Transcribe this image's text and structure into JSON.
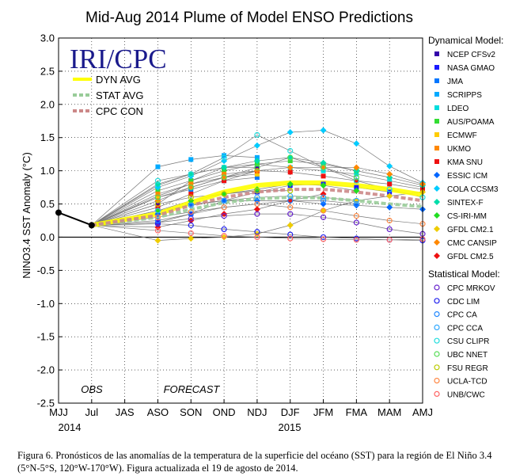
{
  "chart_data": {
    "type": "line",
    "title": "Mid-Aug 2014 Plume of Model ENSO Predictions",
    "logo_text": "IRI/CPC",
    "ylabel": "NINO3.4 SST Anomaly (°C)",
    "ylim": [
      -2.5,
      3.0
    ],
    "yticks": [
      "3.0",
      "2.5",
      "2.0",
      "1.5",
      "1.0",
      "0.5",
      "0.0",
      "-0.5",
      "-1.0",
      "-1.5",
      "-2.0",
      "-2.5"
    ],
    "categories": [
      "MJJ",
      "Jul",
      "JAS",
      "ASO",
      "SON",
      "OND",
      "NDJ",
      "DJF",
      "JFM",
      "FMA",
      "MAM",
      "AMJ"
    ],
    "year_labels": [
      {
        "text": "2014",
        "at": "MJJ"
      },
      {
        "text": "2015",
        "at": "DJF"
      }
    ],
    "region_labels": {
      "obs": "OBS",
      "forecast": "FORECAST"
    },
    "grid": true,
    "observed": {
      "x": [
        "MJJ",
        "Jul"
      ],
      "values": [
        0.37,
        0.18
      ]
    },
    "averages": [
      {
        "name": "DYN AVG",
        "color": "#ffff00",
        "values": [
          null,
          0.18,
          null,
          0.35,
          0.52,
          0.68,
          0.78,
          0.82,
          0.82,
          0.78,
          0.72,
          0.64
        ]
      },
      {
        "name": "STAT AVG",
        "color": "#99cc99",
        "values": [
          null,
          0.18,
          null,
          0.3,
          0.42,
          0.52,
          0.58,
          0.6,
          0.59,
          0.55,
          0.5,
          0.46
        ]
      },
      {
        "name": "CPC CON",
        "color": "#cc8888",
        "values": [
          null,
          0.18,
          null,
          0.33,
          0.48,
          0.6,
          0.68,
          0.72,
          0.72,
          0.68,
          0.62,
          0.55
        ]
      }
    ],
    "legend_dynamical_title": "Dynamical Model:",
    "legend_statistical_title": "Statistical Model:",
    "series": [
      {
        "name": "NCEP CFSv2",
        "group": "dynamical",
        "marker": "square",
        "color": "#3300aa",
        "values": [
          null,
          0.18,
          null,
          0.5,
          0.85,
          1.05,
          1.05,
          null,
          null,
          null,
          null,
          null
        ]
      },
      {
        "name": "NASA GMAO",
        "group": "dynamical",
        "marker": "square",
        "color": "#1a1aff",
        "values": [
          null,
          0.18,
          null,
          0.22,
          0.35,
          0.55,
          0.68,
          0.78,
          0.8,
          0.75,
          0.68,
          null
        ]
      },
      {
        "name": "JMA",
        "group": "dynamical",
        "marker": "square",
        "color": "#0077ff",
        "values": [
          null,
          0.18,
          null,
          0.6,
          0.72,
          0.85,
          0.9,
          null,
          null,
          null,
          null,
          null
        ]
      },
      {
        "name": "SCRIPPS",
        "group": "dynamical",
        "marker": "square",
        "color": "#00aaff",
        "values": [
          null,
          0.18,
          null,
          1.06,
          1.17,
          1.23,
          1.2,
          null,
          null,
          null,
          null,
          null
        ]
      },
      {
        "name": "LDEO",
        "group": "dynamical",
        "marker": "square",
        "color": "#00dddd",
        "values": [
          null,
          0.18,
          null,
          0.78,
          0.95,
          1.05,
          1.1,
          1.05,
          1.0,
          0.95,
          0.85,
          0.75
        ]
      },
      {
        "name": "AUS/POAMA",
        "group": "dynamical",
        "marker": "square",
        "color": "#33dd33",
        "values": [
          null,
          0.18,
          null,
          0.7,
          0.85,
          1.0,
          1.1,
          1.15,
          1.1,
          1.0,
          null,
          null
        ]
      },
      {
        "name": "ECMWF",
        "group": "dynamical",
        "marker": "square",
        "color": "#ffcc00",
        "values": [
          null,
          0.18,
          null,
          0.62,
          0.8,
          0.9,
          0.95,
          null,
          null,
          null,
          null,
          null
        ]
      },
      {
        "name": "UKMO",
        "group": "dynamical",
        "marker": "square",
        "color": "#ff8800",
        "values": [
          null,
          0.18,
          null,
          0.65,
          0.8,
          0.95,
          1.0,
          null,
          null,
          null,
          null,
          null
        ]
      },
      {
        "name": "KMA SNU",
        "group": "dynamical",
        "marker": "square",
        "color": "#ee1111",
        "values": [
          null,
          0.18,
          null,
          0.45,
          0.65,
          0.85,
          1.0,
          0.98,
          0.92,
          0.85,
          0.8,
          0.72
        ]
      },
      {
        "name": "ESSIC ICM",
        "group": "dynamical",
        "marker": "diamond",
        "color": "#0066ff",
        "values": [
          null,
          0.18,
          null,
          0.35,
          0.5,
          0.55,
          0.55,
          0.55,
          0.5,
          0.48,
          0.45,
          0.42
        ]
      },
      {
        "name": "COLA CCSM3",
        "group": "dynamical",
        "marker": "diamond",
        "color": "#00ccff",
        "values": [
          null,
          0.18,
          null,
          0.75,
          0.92,
          1.15,
          1.38,
          1.58,
          1.61,
          1.41,
          1.07,
          0.82
        ]
      },
      {
        "name": "SINTEX-F",
        "group": "dynamical",
        "marker": "diamond",
        "color": "#00ddaa",
        "values": [
          null,
          0.18,
          null,
          0.8,
          0.95,
          1.05,
          1.15,
          1.2,
          1.12,
          1.0,
          0.9,
          0.78
        ]
      },
      {
        "name": "CS-IRI-MM",
        "group": "dynamical",
        "marker": "diamond",
        "color": "#22dd22",
        "values": [
          null,
          0.18,
          null,
          0.4,
          0.55,
          0.65,
          0.72,
          0.8,
          0.78,
          0.7,
          null,
          null
        ]
      },
      {
        "name": "GFDL CM2.1",
        "group": "dynamical",
        "marker": "diamond",
        "color": "#eecc00",
        "values": [
          null,
          0.18,
          null,
          -0.05,
          -0.02,
          0.0,
          0.05,
          0.18,
          0.4,
          0.55,
          0.62,
          0.68
        ]
      },
      {
        "name": "CMC CANSIP",
        "group": "dynamical",
        "marker": "diamond",
        "color": "#ff8800",
        "values": [
          null,
          0.18,
          null,
          0.55,
          0.75,
          0.9,
          1.0,
          1.05,
          1.05,
          1.05,
          0.95,
          0.8
        ]
      },
      {
        "name": "GFDL CM2.5",
        "group": "dynamical",
        "marker": "diamond",
        "color": "#ee1111",
        "values": [
          null,
          0.18,
          null,
          0.15,
          0.25,
          0.35,
          0.42,
          0.55,
          0.65,
          null,
          null,
          null
        ]
      },
      {
        "name": "CPC MRKOV",
        "group": "statistical",
        "marker": "circle",
        "color": "#6622cc",
        "values": [
          null,
          0.18,
          null,
          0.22,
          0.28,
          0.32,
          0.35,
          0.35,
          0.3,
          0.22,
          0.12,
          0.05
        ]
      },
      {
        "name": "CDC LIM",
        "group": "statistical",
        "marker": "circle",
        "color": "#2222ee",
        "values": [
          null,
          0.18,
          null,
          0.2,
          0.18,
          0.12,
          0.08,
          0.04,
          0.0,
          -0.02,
          -0.04,
          -0.05
        ]
      },
      {
        "name": "CPC CA",
        "group": "statistical",
        "marker": "circle",
        "color": "#2288ff",
        "values": [
          null,
          0.18,
          null,
          0.25,
          0.35,
          0.45,
          0.5,
          0.55,
          0.55,
          0.5,
          null,
          null
        ]
      },
      {
        "name": "CPC CCA",
        "group": "statistical",
        "marker": "circle",
        "color": "#33aaff",
        "values": [
          null,
          0.18,
          null,
          0.4,
          0.48,
          0.55,
          0.6,
          0.62,
          0.6,
          0.55,
          null,
          null
        ]
      },
      {
        "name": "CSU CLIPR",
        "group": "statistical",
        "marker": "circle",
        "color": "#22dddd",
        "values": [
          null,
          0.18,
          null,
          0.85,
          0.95,
          1.2,
          1.54,
          1.3,
          1.05,
          0.85,
          0.72,
          0.6
        ]
      },
      {
        "name": "UBC NNET",
        "group": "statistical",
        "marker": "circle",
        "color": "#55dd55",
        "values": [
          null,
          0.18,
          null,
          0.6,
          0.75,
          0.9,
          1.05,
          1.2,
          1.05,
          0.9,
          null,
          null
        ]
      },
      {
        "name": "FSU REGR",
        "group": "statistical",
        "marker": "circle",
        "color": "#bbcc00",
        "values": [
          null,
          0.18,
          null,
          0.5,
          0.6,
          0.65,
          0.7,
          0.7,
          null,
          null,
          null,
          null
        ]
      },
      {
        "name": "UCLA-TCD",
        "group": "statistical",
        "marker": "circle",
        "color": "#ff8844",
        "values": [
          null,
          0.18,
          null,
          0.3,
          0.38,
          0.45,
          0.5,
          0.45,
          0.4,
          0.32,
          0.25,
          0.2
        ]
      },
      {
        "name": "UNB/CWC",
        "group": "statistical",
        "marker": "circle",
        "color": "#ff6666",
        "values": [
          null,
          0.18,
          null,
          0.1,
          0.06,
          0.02,
          0.0,
          -0.02,
          -0.03,
          -0.04,
          -0.04,
          -0.03
        ]
      }
    ]
  },
  "caption": "Figura 6. Pronósticos de las anomalías de la temperatura de la superficie del océano (SST) para la región de El Niño 3.4 (5°N-5°S, 120°W-170°W). Figura actualizada el 19 de agosto de 2014."
}
